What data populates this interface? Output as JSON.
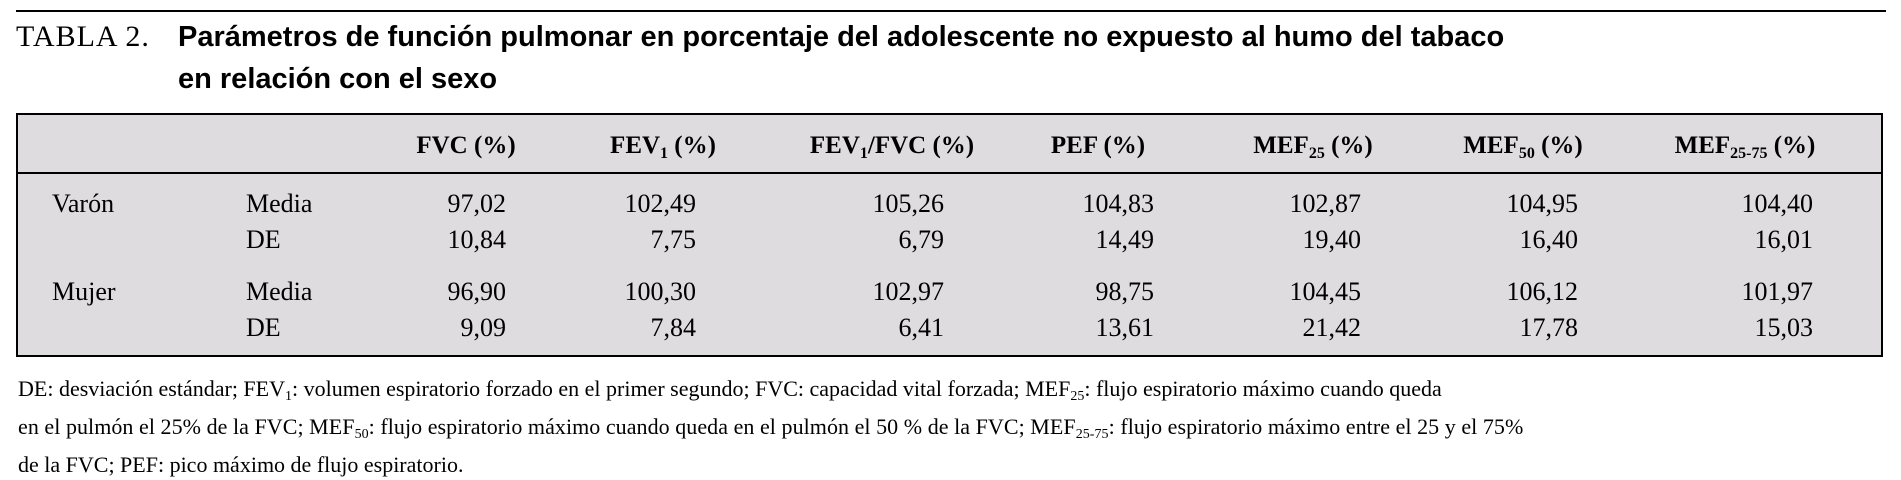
{
  "caption": "TABLA 2.",
  "title_line1": "Parámetros de función pulmonar en porcentaje del adolescente no expuesto al humo del tabaco",
  "title_line2": "en relación con el sexo",
  "headers": [
    {
      "main": "FVC (%)",
      "sub": "",
      "tail": ""
    },
    {
      "main": "FEV",
      "sub": "1",
      "tail": " (%)"
    },
    {
      "main": "FEV",
      "sub": "1",
      "tail": "/FVC (%)"
    },
    {
      "main": "PEF (%)",
      "sub": "",
      "tail": ""
    },
    {
      "main": "MEF",
      "sub": "25",
      "tail": " (%)"
    },
    {
      "main": "MEF",
      "sub": "50",
      "tail": " (%)"
    },
    {
      "main": "MEF",
      "sub": "25-75",
      "tail": " (%)"
    }
  ],
  "rows": [
    {
      "group": "Varón",
      "stat": "Media",
      "values": [
        "97,02",
        "102,49",
        "105,26",
        "104,83",
        "102,87",
        "104,95",
        "104,40"
      ]
    },
    {
      "group": "",
      "stat": "DE",
      "values": [
        "10,84",
        "7,75",
        "6,79",
        "14,49",
        "19,40",
        "16,40",
        "16,01"
      ]
    },
    {
      "group": "Mujer",
      "stat": "Media",
      "values": [
        "96,90",
        "100,30",
        "102,97",
        "98,75",
        "104,45",
        "106,12",
        "101,97"
      ]
    },
    {
      "group": "",
      "stat": "DE",
      "values": [
        "9,09",
        "7,84",
        "6,41",
        "13,61",
        "21,42",
        "17,78",
        "15,03"
      ]
    }
  ],
  "footnote": {
    "l1a": "DE: desviación estándar; FEV",
    "l1s1": "1",
    "l1b": ": volumen espiratorio forzado en el primer segundo; FVC: capacidad vital forzada; MEF",
    "l1s2": "25",
    "l1c": ": flujo espiratorio máximo cuando queda",
    "l2a": "en el pulmón el 25% de la FVC; MEF",
    "l2s1": "50",
    "l2b": ": flujo espiratorio máximo cuando queda en el pulmón el 50 % de la FVC; MEF",
    "l2s2": "25-75",
    "l2c": ": flujo espiratorio máximo entre el 25 y el 75%",
    "l3": "de la FVC; PEF: pico máximo de flujo espiratorio."
  }
}
